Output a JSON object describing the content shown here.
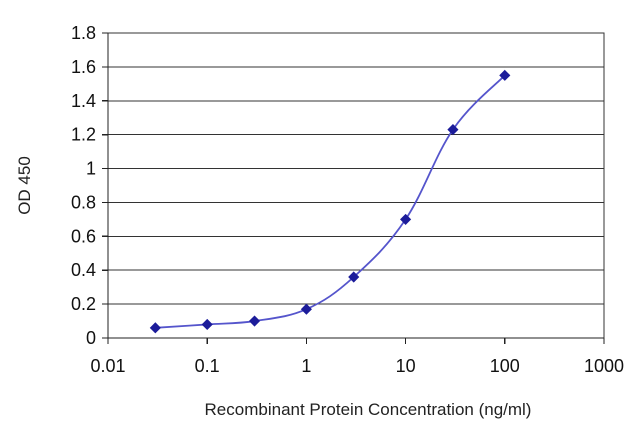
{
  "chart_data": {
    "type": "line",
    "title": "",
    "xlabel": "Recombinant Protein Concentration (ng/ml)",
    "ylabel": "OD 450",
    "x_scale": "log",
    "xlim": [
      0.01,
      1000
    ],
    "ylim": [
      0,
      1.8
    ],
    "x_ticks": [
      "0.01",
      "0.1",
      "1",
      "10",
      "100",
      "1000"
    ],
    "y_ticks": [
      "0",
      "0.2",
      "0.4",
      "0.6",
      "0.8",
      "1",
      "1.2",
      "1.4",
      "1.6",
      "1.8"
    ],
    "grid": "horizontal",
    "legend": "none",
    "x": [
      0.03,
      0.1,
      0.3,
      1,
      3,
      10,
      30,
      100
    ],
    "series": [
      {
        "values": [
          0.06,
          0.08,
          0.1,
          0.17,
          0.36,
          0.7,
          1.23,
          1.55
        ],
        "color": "#1c1c9a",
        "line_color": "#5555cc",
        "marker": "diamond"
      }
    ]
  }
}
